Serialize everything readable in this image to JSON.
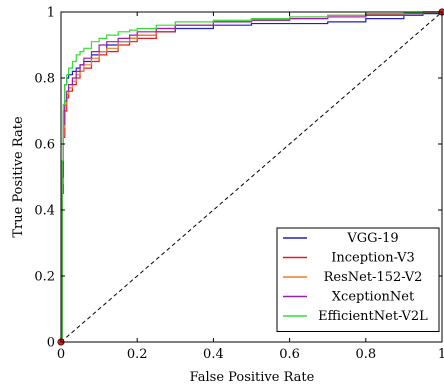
{
  "chart_data": {
    "type": "line",
    "title": "",
    "xlabel": "False Positive Rate",
    "ylabel": "True Positive Rate",
    "xlim": [
      0,
      1
    ],
    "ylim": [
      0,
      1
    ],
    "xticks": [
      0,
      0.2,
      0.4,
      0.6,
      0.8,
      1
    ],
    "yticks": [
      0,
      0.2,
      0.4,
      0.6,
      0.8,
      1
    ],
    "xtick_labels": [
      "0",
      "0.2",
      "0.4",
      "0.6",
      "0.8",
      "1"
    ],
    "ytick_labels": [
      "0",
      "0.2",
      "0.4",
      "0.6",
      "0.8",
      "1"
    ],
    "grid": false,
    "legend_position": "bottom-right",
    "series": [
      {
        "name": "VGG-19",
        "color": "#1f1fcc",
        "x": [
          0,
          0.003,
          0.006,
          0.01,
          0.015,
          0.02,
          0.03,
          0.04,
          0.05,
          0.06,
          0.08,
          0.1,
          0.12,
          0.15,
          0.18,
          0.2,
          0.25,
          0.3,
          0.4,
          0.5,
          0.6,
          0.7,
          0.8,
          0.9,
          0.95,
          1
        ],
        "y": [
          0,
          0.5,
          0.7,
          0.78,
          0.8,
          0.81,
          0.82,
          0.83,
          0.84,
          0.85,
          0.87,
          0.88,
          0.9,
          0.91,
          0.92,
          0.93,
          0.94,
          0.95,
          0.96,
          0.965,
          0.965,
          0.97,
          0.98,
          0.99,
          0.995,
          1
        ]
      },
      {
        "name": "Inception-V3",
        "color": "#e02020",
        "x": [
          0,
          0.003,
          0.006,
          0.01,
          0.015,
          0.02,
          0.03,
          0.04,
          0.05,
          0.06,
          0.08,
          0.1,
          0.12,
          0.15,
          0.18,
          0.2,
          0.25,
          0.3,
          0.4,
          0.5,
          0.6,
          0.7,
          0.8,
          0.9,
          0.95,
          1
        ],
        "y": [
          0,
          0.45,
          0.62,
          0.7,
          0.74,
          0.76,
          0.78,
          0.8,
          0.82,
          0.83,
          0.85,
          0.87,
          0.88,
          0.9,
          0.91,
          0.92,
          0.94,
          0.96,
          0.97,
          0.98,
          0.985,
          0.99,
          0.993,
          0.997,
          1,
          1
        ]
      },
      {
        "name": "ResNet-152-V2",
        "color": "#f07a30",
        "x": [
          0,
          0.003,
          0.006,
          0.01,
          0.015,
          0.02,
          0.03,
          0.04,
          0.05,
          0.06,
          0.08,
          0.1,
          0.12,
          0.15,
          0.18,
          0.2,
          0.25,
          0.3,
          0.4,
          0.5,
          0.6,
          0.7,
          0.8,
          0.9,
          0.95,
          1
        ],
        "y": [
          0,
          0.48,
          0.65,
          0.72,
          0.75,
          0.77,
          0.79,
          0.81,
          0.82,
          0.84,
          0.86,
          0.88,
          0.89,
          0.91,
          0.92,
          0.93,
          0.95,
          0.96,
          0.97,
          0.975,
          0.98,
          0.985,
          0.99,
          0.995,
          1,
          1
        ]
      },
      {
        "name": "XceptionNet",
        "color": "#9a1fa8",
        "x": [
          0,
          0.003,
          0.006,
          0.01,
          0.015,
          0.02,
          0.03,
          0.04,
          0.05,
          0.06,
          0.08,
          0.1,
          0.12,
          0.15,
          0.18,
          0.2,
          0.25,
          0.3,
          0.4,
          0.5,
          0.6,
          0.7,
          0.8,
          0.9,
          0.95,
          1
        ],
        "y": [
          0,
          0.5,
          0.66,
          0.73,
          0.76,
          0.78,
          0.8,
          0.82,
          0.84,
          0.86,
          0.88,
          0.9,
          0.91,
          0.92,
          0.93,
          0.94,
          0.95,
          0.96,
          0.97,
          0.975,
          0.98,
          0.985,
          0.99,
          0.995,
          1,
          1
        ]
      },
      {
        "name": "EfficientNet-V2L",
        "color": "#33dd33",
        "x": [
          0,
          0.003,
          0.006,
          0.01,
          0.015,
          0.02,
          0.03,
          0.04,
          0.05,
          0.06,
          0.08,
          0.1,
          0.12,
          0.15,
          0.18,
          0.2,
          0.25,
          0.3,
          0.4,
          0.5,
          0.6,
          0.7,
          0.8,
          0.9,
          0.95,
          1
        ],
        "y": [
          0,
          0.55,
          0.72,
          0.78,
          0.81,
          0.83,
          0.85,
          0.87,
          0.88,
          0.89,
          0.91,
          0.92,
          0.93,
          0.94,
          0.945,
          0.95,
          0.96,
          0.97,
          0.975,
          0.98,
          0.985,
          0.99,
          0.995,
          0.998,
          1,
          1
        ]
      }
    ],
    "reference_line": {
      "x": [
        0,
        1
      ],
      "y": [
        0,
        1
      ],
      "style": "dashed",
      "color": "#000000"
    },
    "markers": [
      {
        "x": 0,
        "y": 0,
        "color": "#e02020"
      },
      {
        "x": 1,
        "y": 1,
        "color": "#e02020"
      }
    ]
  }
}
